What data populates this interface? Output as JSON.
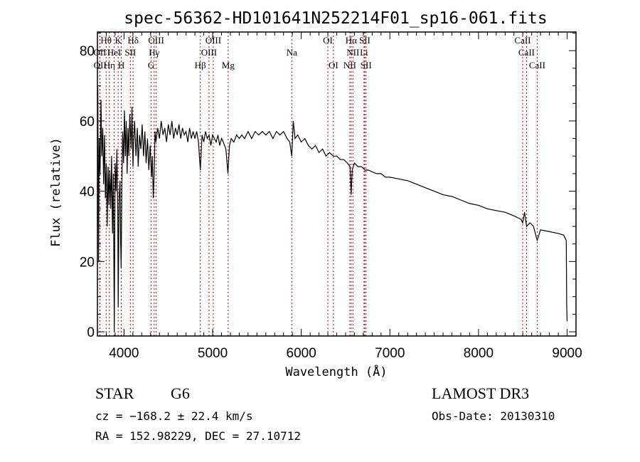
{
  "chart_data": {
    "type": "line",
    "title": "spec-56362-HD101641N252214F01_sp16-061.fits",
    "xlabel": "Wavelength (Å)",
    "ylabel": "Flux (relative)",
    "xlim": [
      3700,
      9100
    ],
    "ylim": [
      -1.2,
      85.3
    ],
    "xticks": [
      4000,
      5000,
      6000,
      7000,
      8000,
      9000
    ],
    "yticks": [
      0,
      20,
      40,
      60,
      80
    ],
    "grid": false,
    "line_color": "#000000",
    "marker_color": "#b00000",
    "series": [
      {
        "name": "spectrum",
        "points": [
          [
            3700,
            30
          ],
          [
            3705,
            70
          ],
          [
            3712,
            20
          ],
          [
            3720,
            55
          ],
          [
            3730,
            45
          ],
          [
            3740,
            66
          ],
          [
            3750,
            50
          ],
          [
            3760,
            58
          ],
          [
            3770,
            42
          ],
          [
            3780,
            56
          ],
          [
            3790,
            38
          ],
          [
            3800,
            48
          ],
          [
            3810,
            30
          ],
          [
            3820,
            47
          ],
          [
            3830,
            36
          ],
          [
            3840,
            46
          ],
          [
            3850,
            35
          ],
          [
            3860,
            50
          ],
          [
            3870,
            28
          ],
          [
            3880,
            45
          ],
          [
            3890,
            0
          ],
          [
            3900,
            48
          ],
          [
            3910,
            40
          ],
          [
            3920,
            52
          ],
          [
            3930,
            32
          ],
          [
            3934,
            7
          ],
          [
            3945,
            38
          ],
          [
            3955,
            43
          ],
          [
            3962,
            25
          ],
          [
            3968,
            18
          ],
          [
            3975,
            40
          ],
          [
            3985,
            57
          ],
          [
            3995,
            48
          ],
          [
            4005,
            63
          ],
          [
            4015,
            50
          ],
          [
            4025,
            60
          ],
          [
            4035,
            45
          ],
          [
            4045,
            58
          ],
          [
            4055,
            50
          ],
          [
            4065,
            62
          ],
          [
            4080,
            52
          ],
          [
            4090,
            64
          ],
          [
            4101,
            47
          ],
          [
            4110,
            55
          ],
          [
            4120,
            60
          ],
          [
            4135,
            50
          ],
          [
            4150,
            58
          ],
          [
            4160,
            47
          ],
          [
            4175,
            56
          ],
          [
            4190,
            52
          ],
          [
            4205,
            59
          ],
          [
            4220,
            50
          ],
          [
            4235,
            57
          ],
          [
            4250,
            48
          ],
          [
            4265,
            55
          ],
          [
            4280,
            46
          ],
          [
            4295,
            53
          ],
          [
            4310,
            44
          ],
          [
            4320,
            50
          ],
          [
            4330,
            38
          ],
          [
            4340,
            45
          ],
          [
            4350,
            57
          ],
          [
            4360,
            54
          ],
          [
            4380,
            58
          ],
          [
            4400,
            55
          ],
          [
            4420,
            60
          ],
          [
            4440,
            56
          ],
          [
            4460,
            58
          ],
          [
            4480,
            54
          ],
          [
            4500,
            59
          ],
          [
            4520,
            56
          ],
          [
            4540,
            60
          ],
          [
            4560,
            55
          ],
          [
            4580,
            58
          ],
          [
            4600,
            56
          ],
          [
            4620,
            59
          ],
          [
            4640,
            55
          ],
          [
            4660,
            58
          ],
          [
            4680,
            56
          ],
          [
            4700,
            57
          ],
          [
            4720,
            54
          ],
          [
            4740,
            58
          ],
          [
            4760,
            55
          ],
          [
            4780,
            57
          ],
          [
            4800,
            55
          ],
          [
            4820,
            57
          ],
          [
            4840,
            54
          ],
          [
            4861,
            46
          ],
          [
            4880,
            56
          ],
          [
            4900,
            54
          ],
          [
            4920,
            57
          ],
          [
            4940,
            55
          ],
          [
            4960,
            56
          ],
          [
            4980,
            53
          ],
          [
            5000,
            56
          ],
          [
            5020,
            55
          ],
          [
            5040,
            54
          ],
          [
            5060,
            56
          ],
          [
            5080,
            53
          ],
          [
            5100,
            55
          ],
          [
            5120,
            54
          ],
          [
            5150,
            52
          ],
          [
            5172,
            45
          ],
          [
            5190,
            53
          ],
          [
            5210,
            55
          ],
          [
            5240,
            54
          ],
          [
            5270,
            56
          ],
          [
            5300,
            55
          ],
          [
            5330,
            56
          ],
          [
            5360,
            55
          ],
          [
            5400,
            57
          ],
          [
            5440,
            55
          ],
          [
            5480,
            57
          ],
          [
            5520,
            56
          ],
          [
            5560,
            57
          ],
          [
            5600,
            56
          ],
          [
            5640,
            57
          ],
          [
            5680,
            55
          ],
          [
            5720,
            57
          ],
          [
            5760,
            56
          ],
          [
            5800,
            57
          ],
          [
            5840,
            55
          ],
          [
            5870,
            54
          ],
          [
            5893,
            50
          ],
          [
            5910,
            60
          ],
          [
            5930,
            55
          ],
          [
            5960,
            56
          ],
          [
            6000,
            54
          ],
          [
            6040,
            55
          ],
          [
            6080,
            53
          ],
          [
            6120,
            52
          ],
          [
            6160,
            53
          ],
          [
            6200,
            51
          ],
          [
            6240,
            52
          ],
          [
            6280,
            50
          ],
          [
            6320,
            51
          ],
          [
            6360,
            50
          ],
          [
            6400,
            50
          ],
          [
            6440,
            49
          ],
          [
            6480,
            49
          ],
          [
            6520,
            48
          ],
          [
            6550,
            47
          ],
          [
            6563,
            39
          ],
          [
            6575,
            46
          ],
          [
            6600,
            48
          ],
          [
            6640,
            47
          ],
          [
            6680,
            47
          ],
          [
            6720,
            46
          ],
          [
            6760,
            46
          ],
          [
            6800,
            45.5
          ],
          [
            6850,
            45
          ],
          [
            6900,
            45
          ],
          [
            6950,
            44
          ],
          [
            7000,
            44
          ],
          [
            7100,
            43.5
          ],
          [
            7200,
            43
          ],
          [
            7300,
            42
          ],
          [
            7400,
            41
          ],
          [
            7500,
            40
          ],
          [
            7600,
            39
          ],
          [
            7700,
            38.5
          ],
          [
            7800,
            37.5
          ],
          [
            7900,
            36.5
          ],
          [
            8000,
            36
          ],
          [
            8100,
            35
          ],
          [
            8200,
            34.5
          ],
          [
            8300,
            34
          ],
          [
            8400,
            33
          ],
          [
            8480,
            32
          ],
          [
            8498,
            31
          ],
          [
            8520,
            34
          ],
          [
            8542,
            30
          ],
          [
            8580,
            31
          ],
          [
            8620,
            30
          ],
          [
            8662,
            26
          ],
          [
            8700,
            29
          ],
          [
            8800,
            28.5
          ],
          [
            8900,
            28
          ],
          [
            8960,
            27.5
          ],
          [
            8990,
            26
          ],
          [
            8995,
            8
          ],
          [
            9000,
            3
          ]
        ]
      }
    ],
    "lines": [
      {
        "label": "OII",
        "wave": 3727,
        "row": 1
      },
      {
        "label": "OII",
        "wave": 3729,
        "row": 2
      },
      {
        "label": "Hθ",
        "wave": 3798,
        "row": 0
      },
      {
        "label": "Hη",
        "wave": 3835,
        "row": 2
      },
      {
        "label": "HeI",
        "wave": 3889,
        "row": 1
      },
      {
        "label": "K",
        "wave": 3934,
        "row": 0
      },
      {
        "label": "H",
        "wave": 3969,
        "row": 2
      },
      {
        "label": "SII",
        "wave": 4072,
        "row": 1
      },
      {
        "label": "Hδ",
        "wave": 4102,
        "row": 0
      },
      {
        "label": "G",
        "wave": 4305,
        "row": 2
      },
      {
        "label": "Hγ",
        "wave": 4340,
        "row": 1
      },
      {
        "label": "OIII",
        "wave": 4363,
        "row": 0
      },
      {
        "label": "Hβ",
        "wave": 4861,
        "row": 2
      },
      {
        "label": "OIII",
        "wave": 4959,
        "row": 1
      },
      {
        "label": "OIII",
        "wave": 5007,
        "row": 0
      },
      {
        "label": "Mg",
        "wave": 5175,
        "row": 2
      },
      {
        "label": "Na",
        "wave": 5893,
        "row": 1
      },
      {
        "label": "OI",
        "wave": 6300,
        "row": 0
      },
      {
        "label": "OI",
        "wave": 6363,
        "row": 2
      },
      {
        "label": "NII",
        "wave": 6548,
        "row": 2
      },
      {
        "label": "Hα",
        "wave": 6563,
        "row": 0
      },
      {
        "label": "NII",
        "wave": 6583,
        "row": 1
      },
      {
        "label": "Li",
        "wave": 6708,
        "row": 1
      },
      {
        "label": "SII",
        "wave": 6716,
        "row": 0
      },
      {
        "label": "SII",
        "wave": 6731,
        "row": 2
      },
      {
        "label": "CaII",
        "wave": 8498,
        "row": 0
      },
      {
        "label": "CaII",
        "wave": 8542,
        "row": 1
      },
      {
        "label": "CaII",
        "wave": 8662,
        "row": 2
      }
    ]
  },
  "info": {
    "class": "STAR",
    "subclass": "G6",
    "survey": "LAMOST DR3",
    "cz": "cz = −168.2 ± 22.4 km/s",
    "obs_date": "Obs-Date: 20130310",
    "coords": "RA = 152.98229, DEC =  27.10712"
  }
}
